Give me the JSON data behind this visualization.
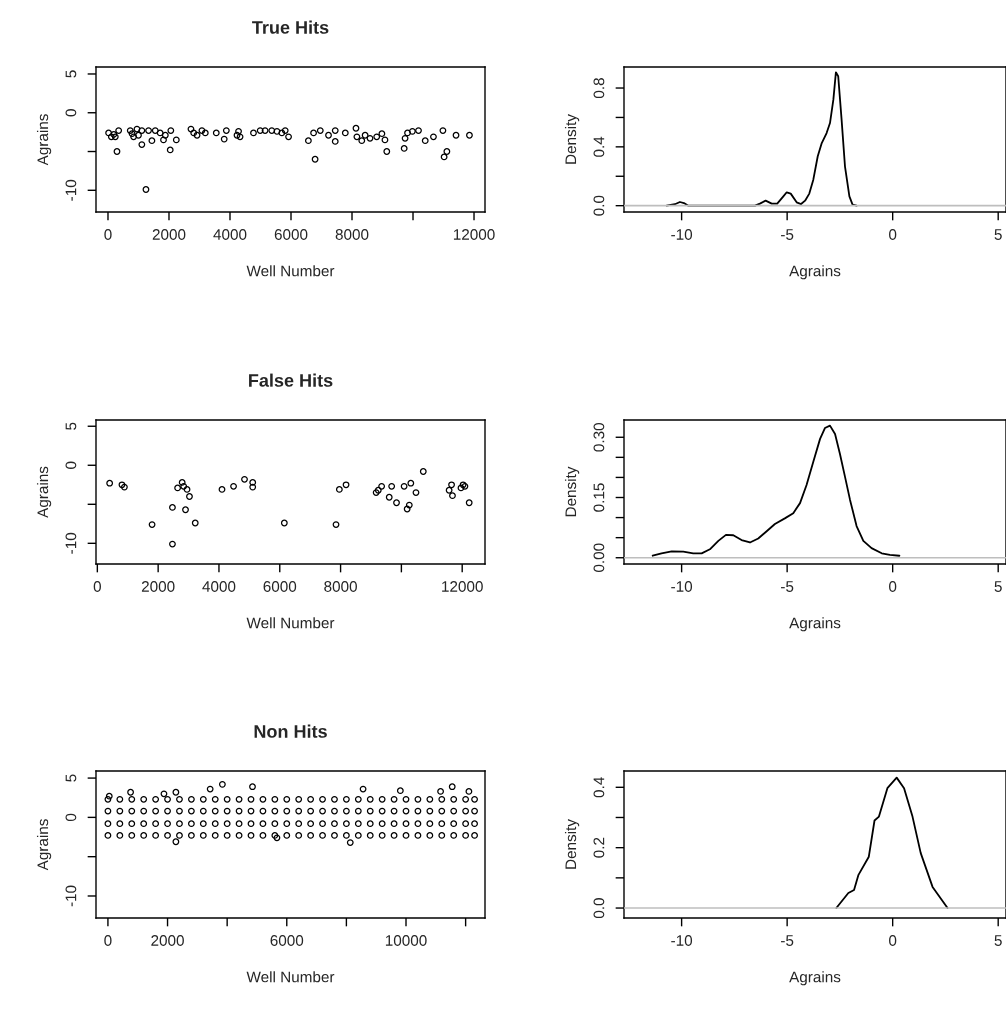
{
  "chart_data": [
    {
      "type": "scatter",
      "title": "True Hits",
      "xlabel": "Well Number",
      "ylabel": "Agrains",
      "marker": "circle",
      "grid": false,
      "xlim": [
        -393,
        12360
      ],
      "ylim": [
        -12.8,
        5.9
      ],
      "xticks": [
        0,
        2000,
        4000,
        6000,
        8000,
        {
          "value": 10000,
          "label": null
        },
        12000
      ],
      "yticks": [
        -10,
        {
          "value": -5,
          "label": null
        },
        0,
        5
      ],
      "series": [
        {
          "color": "#000000",
          "x": [
            20,
            110,
            190,
            295,
            350,
            240,
            730,
            790,
            840,
            950,
            1000,
            1110,
            1110,
            1245,
            1330,
            1440,
            1550,
            1710,
            1820,
            1880,
            2040,
            2060,
            2240,
            2720,
            2810,
            2920,
            3080,
            3190,
            3550,
            3810,
            3880,
            4230,
            4280,
            4330,
            4770,
            4990,
            5150,
            5370,
            5540,
            5700,
            5810,
            5920,
            6570,
            6790,
            6740,
            6960,
            7230,
            7450,
            7450,
            7780,
            8130,
            8160,
            8320,
            8430,
            8590,
            8810,
            8980,
            9080,
            9140,
            9710,
            9740,
            9820,
            9980,
            10180,
            10400,
            10670,
            10980,
            11110,
            11020,
            11410,
            11850
          ],
          "values": [
            -2.6,
            -3.1,
            -2.8,
            -5.0,
            -2.3,
            -3.1,
            -2.3,
            -2.7,
            -3.1,
            -2.1,
            -2.9,
            -4.1,
            -2.3,
            -9.9,
            -2.3,
            -3.6,
            -2.3,
            -2.6,
            -3.5,
            -2.9,
            -4.8,
            -2.3,
            -3.5,
            -2.1,
            -2.6,
            -2.9,
            -2.3,
            -2.6,
            -2.6,
            -3.4,
            -2.3,
            -2.9,
            -2.4,
            -3.1,
            -2.6,
            -2.3,
            -2.3,
            -2.3,
            -2.4,
            -2.6,
            -2.3,
            -3.1,
            -3.6,
            -6.0,
            -2.6,
            -2.3,
            -2.9,
            -3.7,
            -2.3,
            -2.6,
            -2.0,
            -3.1,
            -3.6,
            -2.9,
            -3.3,
            -3.1,
            -2.7,
            -3.5,
            -5.0,
            -4.6,
            -3.3,
            -2.6,
            -2.4,
            -2.3,
            -3.6,
            -3.1,
            -2.3,
            -5.0,
            -5.7,
            -2.9,
            -2.9
          ]
        }
      ]
    },
    {
      "type": "line",
      "xlabel": "Agrains",
      "ylabel": "Density",
      "grid": false,
      "xlim": [
        -12.73,
        5.37
      ],
      "ylim": [
        -0.043,
        0.943
      ],
      "xticks": [
        -10,
        -5,
        0,
        5
      ],
      "yticks": [
        {
          "value": 0,
          "label": "0.0"
        },
        {
          "value": 0.2,
          "label": null
        },
        0.4,
        {
          "value": 0.6,
          "label": null
        },
        0.8
      ],
      "ref_lines": [
        {
          "axis": "y",
          "value": 0,
          "color": "#bebebe"
        }
      ],
      "series": [
        {
          "color": "#000000",
          "x": [
            -10.71,
            -10.32,
            -10.08,
            -9.89,
            -9.68,
            -6.52,
            -6.29,
            -6.02,
            -5.73,
            -5.47,
            -5.18,
            -5.02,
            -4.83,
            -4.55,
            -4.34,
            -4.15,
            -3.95,
            -3.76,
            -3.55,
            -3.36,
            -3.13,
            -2.97,
            -2.81,
            -2.69,
            -2.58,
            -2.42,
            -2.26,
            -2.05,
            -1.9,
            -1.71
          ],
          "values": [
            0,
            0.01,
            0.025,
            0.018,
            0,
            0,
            0.014,
            0.034,
            0.014,
            0.014,
            0.063,
            0.091,
            0.082,
            0.023,
            0.011,
            0.034,
            0.082,
            0.177,
            0.336,
            0.426,
            0.494,
            0.562,
            0.721,
            0.907,
            0.88,
            0.585,
            0.268,
            0.063,
            0.007,
            0
          ]
        }
      ]
    },
    {
      "type": "scatter",
      "title": "False Hits",
      "xlabel": "Well Number",
      "ylabel": "Agrains",
      "marker": "circle",
      "grid": false,
      "xlim": [
        -44,
        12750
      ],
      "ylim": [
        -12.65,
        5.8
      ],
      "xticks": [
        0,
        2000,
        4000,
        6000,
        8000,
        {
          "value": 10000,
          "label": null
        },
        12000
      ],
      "yticks": [
        -10,
        {
          "value": -5,
          "label": null
        },
        0,
        5
      ],
      "series": [
        {
          "color": "#000000",
          "x": [
            405,
            810,
            890,
            1800,
            2470,
            2470,
            2640,
            2790,
            2840,
            2950,
            3030,
            2900,
            3220,
            4100,
            4480,
            4840,
            5110,
            5110,
            6150,
            7850,
            7960,
            8180,
            9170,
            9240,
            9350,
            9600,
            9680,
            9840,
            10090,
            10190,
            10260,
            10310,
            10480,
            10720,
            11570,
            11650,
            11680,
            11960,
            12030,
            12090,
            12230
          ],
          "values": [
            -2.3,
            -2.5,
            -2.8,
            -7.6,
            -5.4,
            -10.1,
            -2.9,
            -2.2,
            -2.7,
            -3.1,
            -4.0,
            -5.7,
            -7.4,
            -3.1,
            -2.7,
            -1.8,
            -2.2,
            -2.8,
            -7.4,
            -7.6,
            -3.1,
            -2.5,
            -3.5,
            -3.2,
            -2.7,
            -4.1,
            -2.7,
            -4.8,
            -2.7,
            -5.6,
            -5.1,
            -2.3,
            -3.5,
            -0.8,
            -3.2,
            -2.5,
            -3.9,
            -2.9,
            -2.5,
            -2.7,
            -4.8
          ]
        }
      ]
    },
    {
      "type": "line",
      "xlabel": "Agrains",
      "ylabel": "Density",
      "grid": false,
      "xlim": [
        -12.73,
        5.37
      ],
      "ylim": [
        -0.0156,
        0.343
      ],
      "xticks": [
        -10,
        -5,
        0,
        5
      ],
      "yticks": [
        {
          "value": 0,
          "label": "0.00"
        },
        {
          "value": 0.05,
          "label": null
        },
        {
          "value": 0.1,
          "label": null
        },
        {
          "value": 0.15,
          "label": "0.15"
        },
        {
          "value": 0.2,
          "label": null
        },
        {
          "value": 0.25,
          "label": null
        },
        {
          "value": 0.3,
          "label": "0.30"
        }
      ],
      "ref_lines": [
        {
          "axis": "y",
          "value": 0,
          "color": "#bebebe"
        }
      ],
      "series": [
        {
          "color": "#000000",
          "x": [
            -11.37,
            -10.95,
            -10.47,
            -9.92,
            -9.45,
            -9.05,
            -8.66,
            -8.26,
            -7.9,
            -7.55,
            -7.16,
            -6.76,
            -6.37,
            -5.97,
            -5.58,
            -5.11,
            -4.71,
            -4.39,
            -4.08,
            -3.76,
            -3.44,
            -3.21,
            -2.97,
            -2.73,
            -2.5,
            -2.26,
            -2.02,
            -1.71,
            -1.39,
            -1.0,
            -0.52,
            -0.13,
            0.32
          ],
          "values": [
            0.005,
            0.011,
            0.016,
            0.015,
            0.011,
            0.011,
            0.021,
            0.042,
            0.057,
            0.056,
            0.044,
            0.038,
            0.048,
            0.066,
            0.084,
            0.098,
            0.111,
            0.136,
            0.181,
            0.239,
            0.296,
            0.323,
            0.329,
            0.308,
            0.259,
            0.202,
            0.144,
            0.079,
            0.042,
            0.024,
            0.011,
            0.007,
            0.005
          ]
        }
      ]
    },
    {
      "type": "scatter",
      "title": "Non Hits",
      "xlabel": "Well Number",
      "ylabel": "Agrains",
      "marker": "circle",
      "grid": false,
      "xlim": [
        -400,
        12650
      ],
      "ylim": [
        -12.8,
        5.9
      ],
      "xticks": [
        0,
        2000,
        {
          "value": 4000,
          "label": null
        },
        6000,
        {
          "value": 8000,
          "label": null
        },
        10000,
        {
          "value": 12000,
          "label": null
        }
      ],
      "yticks": [
        -10,
        {
          "value": -5,
          "label": null
        },
        0,
        5
      ],
      "series": [
        {
          "color": "#000000",
          "x": [
            0,
            400,
            800,
            1200,
            1600,
            2000,
            2400,
            2800,
            3200,
            3600,
            4000,
            4400,
            4800,
            5200,
            5600,
            6000,
            6400,
            6800,
            7200,
            7600,
            8000,
            8400,
            8800,
            9200,
            9600,
            10000,
            10400,
            10800,
            11200,
            11600,
            12000,
            12300,
            0,
            400,
            800,
            1200,
            1600,
            2000,
            2400,
            2800,
            3200,
            3600,
            4000,
            4400,
            4800,
            5200,
            5600,
            6000,
            6400,
            6800,
            7200,
            7600,
            8000,
            8400,
            8800,
            9200,
            9600,
            10000,
            10400,
            10800,
            11200,
            11600,
            12000,
            12300,
            0,
            400,
            800,
            1200,
            1600,
            2000,
            2400,
            2800,
            3200,
            3600,
            4000,
            4400,
            4800,
            5200,
            5600,
            6000,
            6400,
            6800,
            7200,
            7600,
            8000,
            8400,
            8800,
            9200,
            9600,
            10000,
            10400,
            10800,
            11200,
            11600,
            12000,
            12300,
            0,
            400,
            800,
            1200,
            1600,
            2000,
            2400,
            2800,
            3200,
            3600,
            4000,
            4400,
            4800,
            5200,
            5600,
            6000,
            6400,
            6800,
            7200,
            7600,
            8000,
            8400,
            8800,
            9200,
            9600,
            10000,
            10400,
            10800,
            11200,
            11600,
            12000,
            12300,
            45,
            760,
            1880,
            2280,
            3430,
            3840,
            4850,
            8130,
            8560,
            9810,
            11160,
            11550,
            12110,
            2280,
            5670
          ],
          "values": [
            2.3,
            2.3,
            2.3,
            2.3,
            2.3,
            2.3,
            2.3,
            2.3,
            2.3,
            2.3,
            2.3,
            2.3,
            2.3,
            2.3,
            2.3,
            2.3,
            2.3,
            2.3,
            2.3,
            2.3,
            2.3,
            2.3,
            2.3,
            2.3,
            2.3,
            2.3,
            2.3,
            2.3,
            2.3,
            2.3,
            2.3,
            2.3,
            0.8,
            0.8,
            0.8,
            0.8,
            0.8,
            0.8,
            0.8,
            0.8,
            0.8,
            0.8,
            0.8,
            0.8,
            0.8,
            0.8,
            0.8,
            0.8,
            0.8,
            0.8,
            0.8,
            0.8,
            0.8,
            0.8,
            0.8,
            0.8,
            0.8,
            0.8,
            0.8,
            0.8,
            0.8,
            0.8,
            0.8,
            0.8,
            -0.8,
            -0.8,
            -0.8,
            -0.8,
            -0.8,
            -0.8,
            -0.8,
            -0.8,
            -0.8,
            -0.8,
            -0.8,
            -0.8,
            -0.8,
            -0.8,
            -0.8,
            -0.8,
            -0.8,
            -0.8,
            -0.8,
            -0.8,
            -0.8,
            -0.8,
            -0.8,
            -0.8,
            -0.8,
            -0.8,
            -0.8,
            -0.8,
            -0.8,
            -0.8,
            -0.8,
            -0.8,
            -2.3,
            -2.3,
            -2.3,
            -2.3,
            -2.3,
            -2.3,
            -2.3,
            -2.3,
            -2.3,
            -2.3,
            -2.3,
            -2.3,
            -2.3,
            -2.3,
            -2.3,
            -2.3,
            -2.3,
            -2.3,
            -2.3,
            -2.3,
            -2.3,
            -2.3,
            -2.3,
            -2.3,
            -2.3,
            -2.3,
            -2.3,
            -2.3,
            -2.3,
            -2.3,
            -2.3,
            -2.3,
            2.7,
            3.2,
            3.0,
            3.2,
            3.6,
            4.2,
            3.9,
            -3.2,
            3.6,
            3.4,
            3.3,
            3.9,
            3.3,
            -3.1,
            -2.6
          ]
        }
      ]
    },
    {
      "type": "line",
      "xlabel": "Agrains",
      "ylabel": "Density",
      "grid": false,
      "xlim": [
        -12.73,
        5.37
      ],
      "ylim": [
        -0.033,
        0.454
      ],
      "xticks": [
        -10,
        -5,
        0,
        5
      ],
      "yticks": [
        {
          "value": 0,
          "label": "0.0"
        },
        {
          "value": 0.1,
          "label": null
        },
        0.2,
        {
          "value": 0.3,
          "label": null
        },
        0.4
      ],
      "ref_lines": [
        {
          "axis": "y",
          "value": 0,
          "color": "#bebebe"
        }
      ],
      "series": [
        {
          "color": "#000000",
          "x": [
            -2.67,
            -2.1,
            -1.83,
            -1.62,
            -1.13,
            -0.86,
            -0.65,
            -0.25,
            0.19,
            0.54,
            0.94,
            1.33,
            1.89,
            2.6
          ],
          "values": [
            0,
            0.05,
            0.06,
            0.11,
            0.17,
            0.29,
            0.303,
            0.397,
            0.432,
            0.397,
            0.303,
            0.182,
            0.07,
            0
          ]
        }
      ]
    }
  ]
}
